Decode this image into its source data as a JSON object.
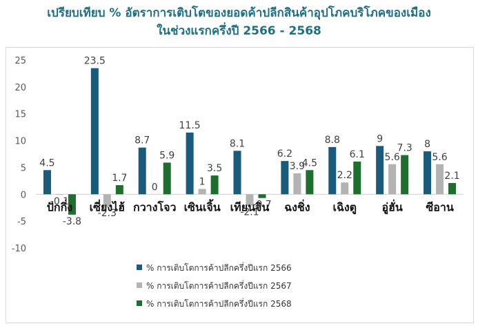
{
  "title_lines": [
    "เปรียบเทียบ % อัตราการเติบโตของยอดค้าปลีกสินค้าอุปโภคบริโภคของเมือง",
    "ในช่วงแรกครึ่งปี 2566 - 2568"
  ],
  "chart_data": {
    "type": "bar",
    "title": "เปรียบเทียบ % อัตราการเติบโตของยอดค้าปลีกสินค้าอุปโภคบริโภคของเมือง ในช่วงแรกครึ่งปี 2566 - 2568",
    "categories": [
      "ปักกิ่ง",
      "เซี่ยงไฮ้",
      "กวางโจว",
      "เซินเจิ้น",
      "เทียนจิน",
      "ฉงชิ่ง",
      "เฉิงตู",
      "อู่ฮั่น",
      "ซีอาน"
    ],
    "series": [
      {
        "name": "% การเติบโตการค้าปลีกครึ่งปีแรก 2566",
        "color": "#1a5a7a",
        "values": [
          4.5,
          23.5,
          8.7,
          11.5,
          8.1,
          6.2,
          8.8,
          9,
          8
        ],
        "labels": [
          "4.5",
          "23.5",
          "8.7",
          "11.5",
          "8.1",
          "6.2",
          "8.8",
          "9",
          "8"
        ]
      },
      {
        "name": "% การเติบโตการค้าปลีกครึ่งปีแรก 2567",
        "color": "#b3b3b3",
        "values": [
          -0.1,
          -2.3,
          0,
          1,
          -2.1,
          3.9,
          2.2,
          5.6,
          5.6
        ],
        "labels": [
          "-0.1",
          "-2.3",
          "0",
          "1",
          "-2.1",
          "3.9",
          "2.2",
          "5.6",
          "5.6"
        ]
      },
      {
        "name": "% การเติบโตการค้าปลีกครึ่งปีแรก 2568",
        "color": "#1e6e2e",
        "values": [
          -3.8,
          1.7,
          5.9,
          3.5,
          -0.7,
          4.5,
          6.1,
          7.3,
          2.1
        ],
        "labels": [
          "-3.8",
          "1.7",
          "5.9",
          "3.5",
          "-0.7",
          "4.5",
          "6.1",
          "7.3",
          "2.1"
        ]
      }
    ],
    "ylim": [
      -10,
      25
    ],
    "yticks": [
      -10,
      -5,
      0,
      5,
      10,
      15,
      20,
      25
    ],
    "ytick_labels": [
      "-10",
      "-5",
      "0",
      "5",
      "10",
      "15",
      "20",
      "25"
    ],
    "grid": false,
    "legend_position": "bottom-center"
  }
}
